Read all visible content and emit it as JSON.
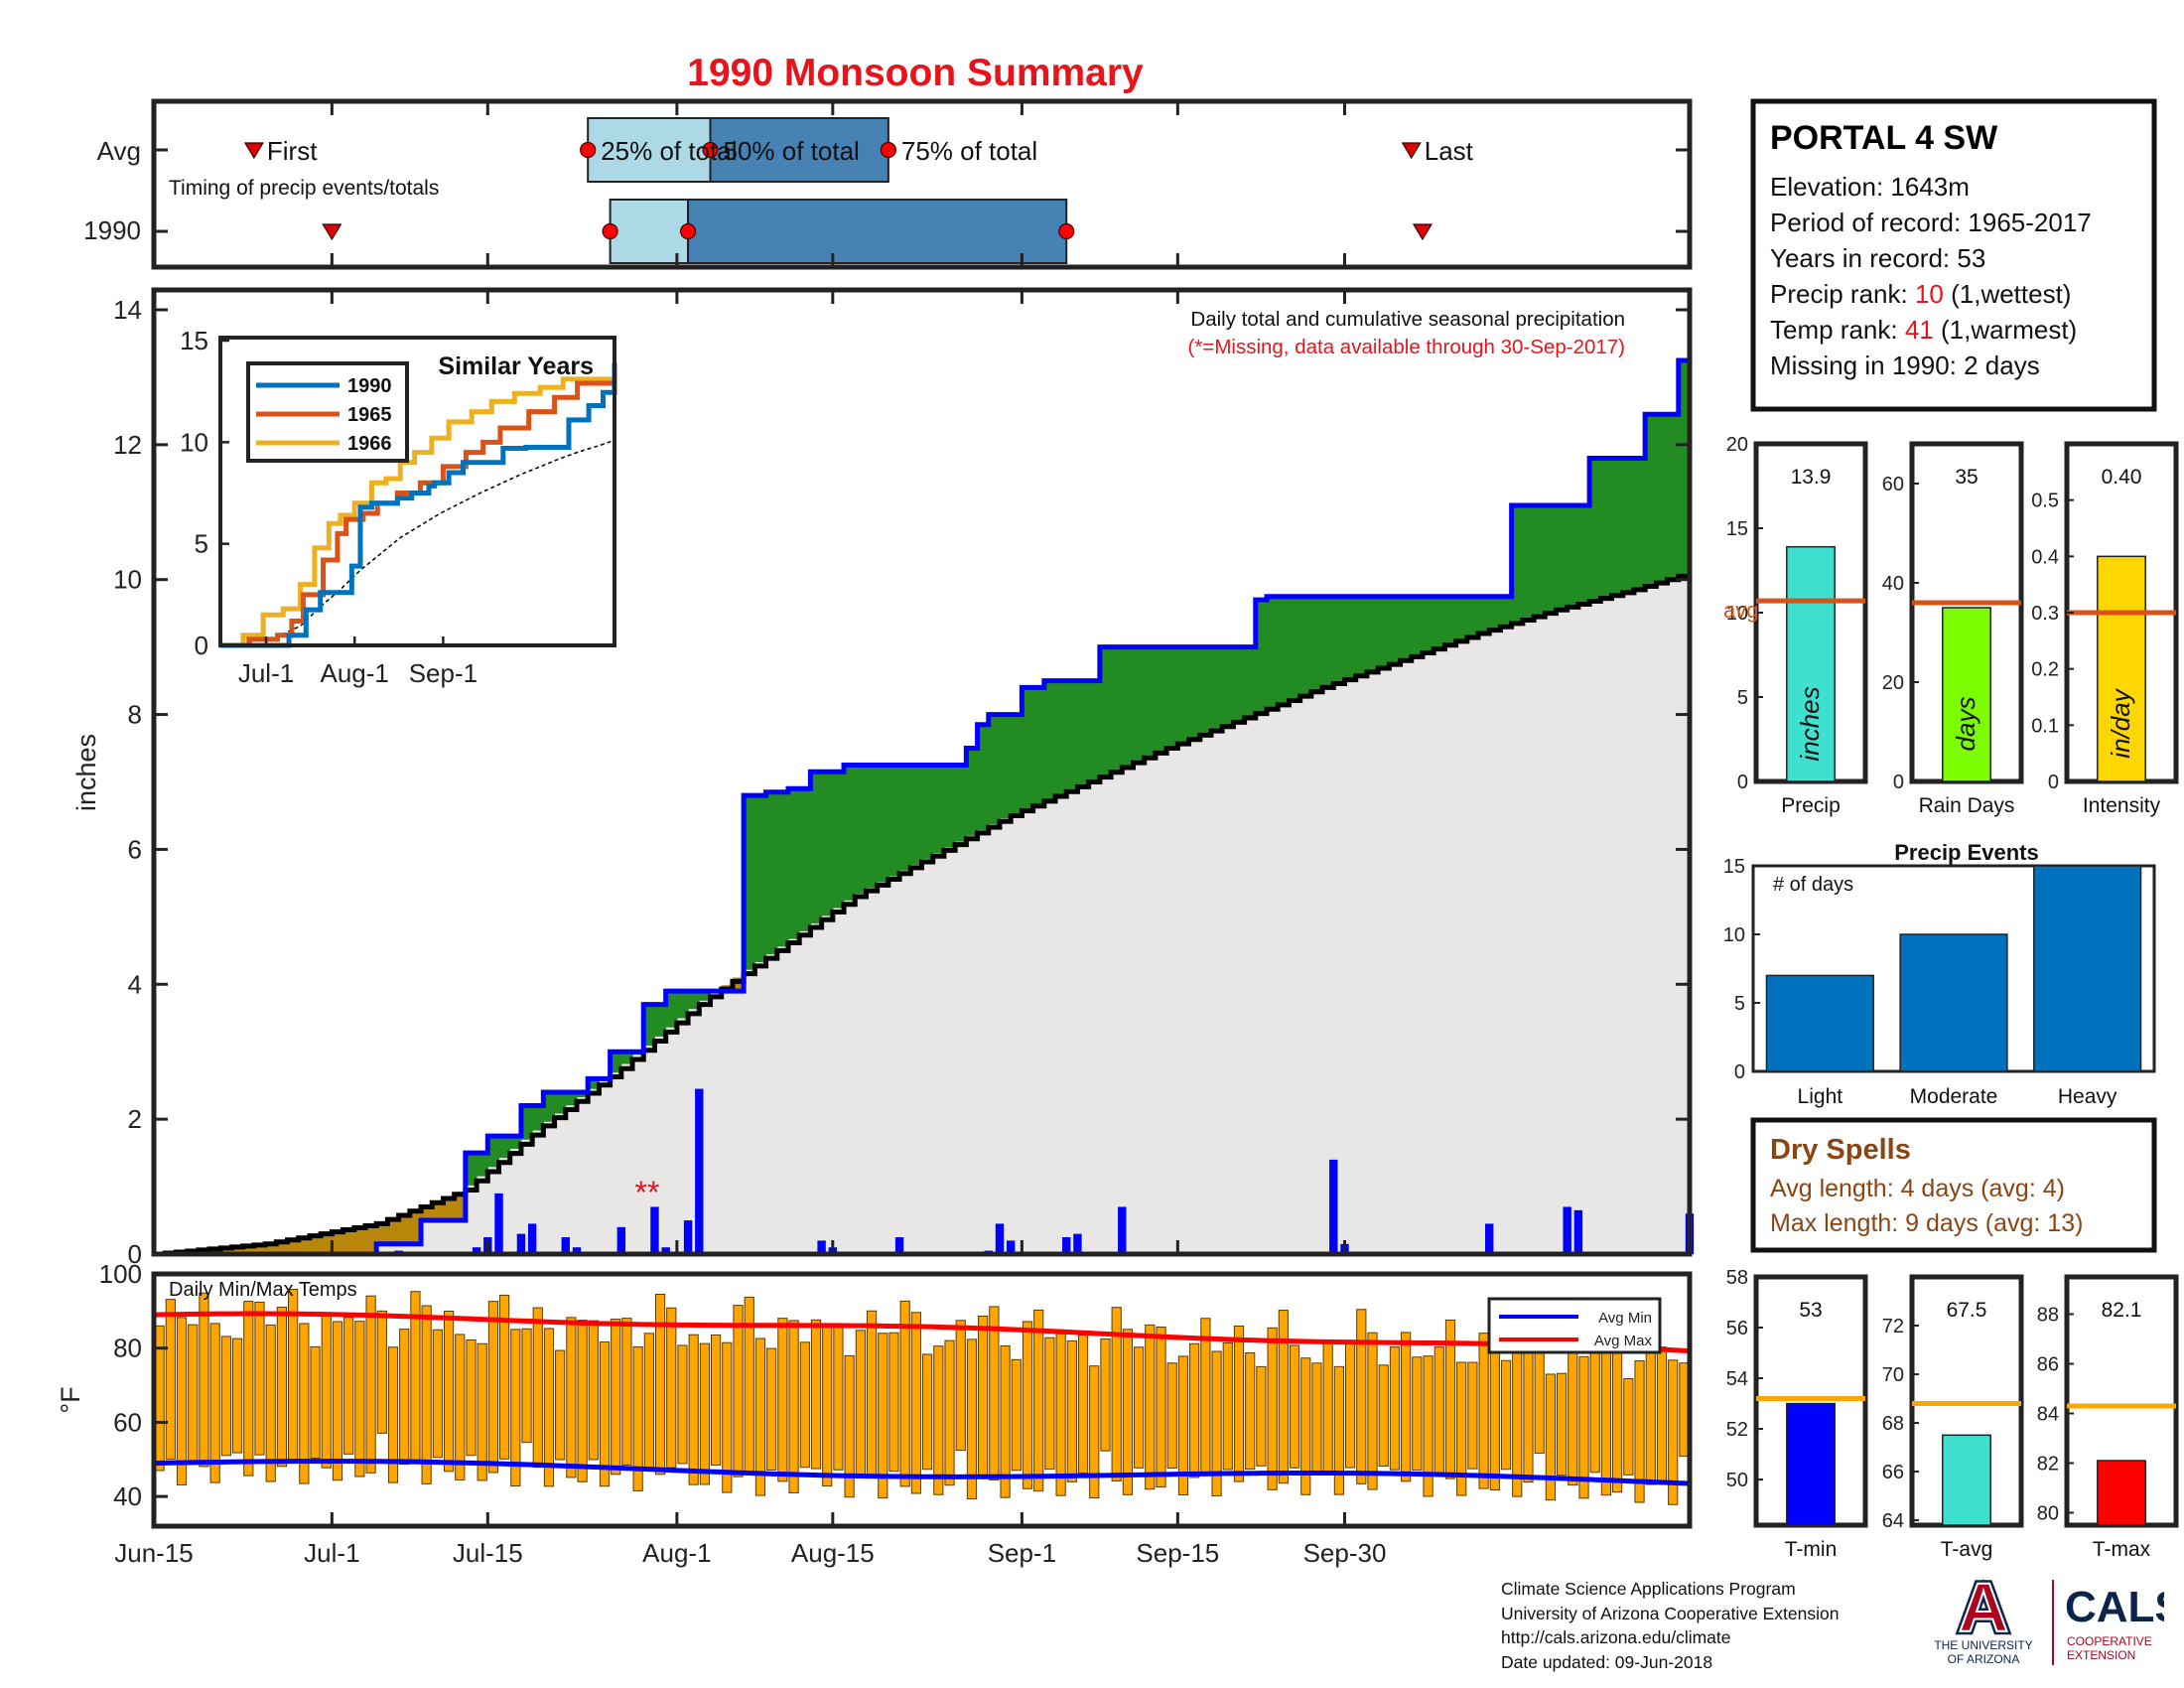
{
  "title": "1990 Monsoon Summary",
  "timing": {
    "row_avg_label": "Avg",
    "row_year_label": "1990",
    "subtitle": "Timing of precip events/totals",
    "first_label": "First",
    "last_label": "Last",
    "p25_label": "25% of total",
    "p50_label": "50% of total",
    "p75_label": "75% of total",
    "avg": {
      "first": 9,
      "p25": 39,
      "p50": 50,
      "p75": 66,
      "last": 113
    },
    "year": {
      "first": 16,
      "p25": 41,
      "p50": 48,
      "p75": 82,
      "last": 114
    }
  },
  "main": {
    "note": "Daily total and cumulative seasonal precipitation",
    "missing_note": "(*=Missing, data available through 30-Sep-2017)",
    "ylabel": "inches",
    "missing_marks": "**",
    "date_ticks": [
      "Jun-15",
      "Jul-1",
      "Jul-15",
      "Aug-1",
      "Aug-15",
      "Sep-1",
      "Sep-15",
      "Sep-30"
    ]
  },
  "chart_data": [
    {
      "type": "area",
      "name": "Cumulative seasonal precipitation",
      "x_day_of_season": [
        0,
        20,
        22,
        24,
        28,
        30,
        33,
        35,
        39,
        41,
        42,
        44,
        46,
        53,
        55,
        57,
        59,
        62,
        73,
        74,
        75,
        78,
        80,
        85,
        99,
        100,
        103,
        107,
        122,
        129,
        131,
        134,
        137,
        138
      ],
      "y_cumulative_1990_in": [
        0,
        0.15,
        0.15,
        0.5,
        1.5,
        1.75,
        2.2,
        2.4,
        2.6,
        3.0,
        3.0,
        3.7,
        3.9,
        6.8,
        6.85,
        6.9,
        7.15,
        7.25,
        7.5,
        7.85,
        8.0,
        8.4,
        8.5,
        9.0,
        9.7,
        9.75,
        9.75,
        9.75,
        11.1,
        11.8,
        11.8,
        12.45,
        13.25,
        13.9
      ],
      "avg_cumulative_x_day": [
        0,
        10,
        20,
        28,
        35,
        42,
        49,
        56,
        63,
        70,
        77,
        84,
        91,
        98,
        105,
        112,
        119,
        126,
        133,
        138
      ],
      "avg_cumulative_in": [
        0,
        0.15,
        0.45,
        0.95,
        1.9,
        2.75,
        3.7,
        4.5,
        5.3,
        5.9,
        6.5,
        7.0,
        7.5,
        7.95,
        8.4,
        8.8,
        9.2,
        9.55,
        9.85,
        10.1
      ],
      "ylim": [
        0,
        14
      ]
    },
    {
      "type": "bar",
      "name": "Daily precipitation 1990",
      "x_day_of_season": [
        22,
        29,
        30,
        31,
        33,
        34,
        37,
        38,
        42,
        45,
        46,
        48,
        49,
        60,
        61,
        67,
        75,
        76,
        77,
        82,
        83,
        87,
        106,
        107,
        120,
        127,
        128,
        138
      ],
      "y_in": [
        0.05,
        0.1,
        0.25,
        0.9,
        0.3,
        0.45,
        0.25,
        0.1,
        0.4,
        0.7,
        0.1,
        0.5,
        2.45,
        0.2,
        0.1,
        0.25,
        0.05,
        0.45,
        0.2,
        0.25,
        0.3,
        0.7,
        1.4,
        0.15,
        0.45,
        0.7,
        0.65,
        0.6
      ]
    },
    {
      "type": "line",
      "name": "Similar Years",
      "title": "Similar Years",
      "xticks": [
        "Jul-1",
        "Aug-1",
        "Sep-1"
      ],
      "ylim": [
        0,
        15
      ],
      "colors": [
        "#0072BD",
        "#D95319",
        "#EDB120"
      ],
      "series": [
        {
          "name": "1990",
          "x": [
            0,
            16,
            24,
            30,
            35,
            46,
            49,
            53,
            62,
            67,
            73,
            75,
            80,
            85,
            99,
            107,
            122,
            129,
            134,
            138
          ],
          "y": [
            0,
            0,
            0.5,
            1.75,
            2.6,
            3.9,
            6.8,
            7.0,
            7.25,
            7.5,
            7.85,
            8.0,
            8.5,
            9.0,
            9.7,
            9.75,
            11.1,
            11.8,
            12.45,
            13.9
          ]
        },
        {
          "name": "1965",
          "x": [
            0,
            10,
            20,
            25,
            29,
            36,
            41,
            44,
            50,
            55,
            62,
            70,
            78,
            86,
            92,
            98,
            108,
            117,
            125,
            138
          ],
          "y": [
            0,
            0.3,
            0.5,
            1.2,
            2.5,
            4.2,
            5.5,
            6.2,
            6.5,
            7.0,
            7.5,
            8.0,
            8.8,
            9.5,
            10.0,
            10.7,
            11.5,
            12.2,
            12.9,
            13.2
          ]
        },
        {
          "name": "1966",
          "x": [
            0,
            8,
            15,
            22,
            28,
            33,
            38,
            42,
            47,
            53,
            58,
            63,
            68,
            74,
            80,
            88,
            95,
            103,
            112,
            120,
            138
          ],
          "y": [
            0,
            0.5,
            1.5,
            1.8,
            3.0,
            4.8,
            6.0,
            6.4,
            7.0,
            8.0,
            8.2,
            9.0,
            9.5,
            10.2,
            11.0,
            11.5,
            12.0,
            12.4,
            12.7,
            13.1,
            13.3
          ]
        }
      ]
    },
    {
      "type": "bar",
      "name": "Seasonal totals",
      "panels": [
        {
          "label": "Precip",
          "unit": "inches",
          "value": 13.9,
          "value_label": "13.9",
          "avg": 10.7,
          "avg_label": "avg",
          "ylim": [
            0,
            20
          ],
          "ticks": [
            0,
            5,
            10,
            15,
            20
          ],
          "color": "#40E0D0"
        },
        {
          "label": "Rain Days",
          "unit": "days",
          "value": 35,
          "value_label": "35",
          "avg": 36,
          "ylim": [
            0,
            68
          ],
          "ticks": [
            0,
            20,
            40,
            60
          ],
          "color": "#7CFC00"
        },
        {
          "label": "Intensity",
          "unit": "in/day",
          "value": 0.4,
          "value_label": "0.40",
          "avg": 0.3,
          "ylim": [
            0,
            0.6
          ],
          "ticks": [
            0,
            0.1,
            0.2,
            0.3,
            0.4,
            0.5
          ],
          "color": "#FFD700"
        }
      ]
    },
    {
      "type": "bar",
      "name": "Precip Events",
      "title": "Precip Events",
      "ylabel": "# of days",
      "categories": [
        "Light",
        "Moderate",
        "Heavy"
      ],
      "values": [
        7,
        10,
        15
      ],
      "ylim": [
        0,
        15
      ]
    },
    {
      "type": "bar",
      "name": "Daily Min/Max Temps",
      "title": "Daily Min/Max Temps",
      "ylabel": "°F",
      "ylim": [
        32,
        100
      ],
      "legend": [
        "Avg Min",
        "Avg Max"
      ],
      "legend_position": "top-right",
      "avg_min_start": 49,
      "avg_min_end": 44,
      "avg_max_start": 89,
      "avg_max_end": 79
    },
    {
      "type": "bar",
      "name": "Seasonal temperature",
      "panels": [
        {
          "label": "T-min",
          "value": 53,
          "value_label": "53",
          "avg": 53.2,
          "ylim": [
            48.2,
            58
          ],
          "ticks": [
            50,
            52,
            54,
            56,
            58
          ],
          "color": "#0000FF"
        },
        {
          "label": "T-avg",
          "value": 67.5,
          "value_label": "67.5",
          "avg": 68.8,
          "ylim": [
            63.8,
            74
          ],
          "ticks": [
            64,
            66,
            68,
            70,
            72
          ],
          "color": "#40E0D0"
        },
        {
          "label": "T-max",
          "value": 82.1,
          "value_label": "82.1",
          "avg": 84.3,
          "ylim": [
            79.5,
            89.5
          ],
          "ticks": [
            80,
            82,
            84,
            86,
            88
          ],
          "color": "#FF0000"
        }
      ]
    }
  ],
  "station": {
    "name": "PORTAL 4 SW",
    "elevation": "Elevation: 1643m",
    "period": "Period of record: 1965-2017",
    "years": "Years in record: 53",
    "precip_rank_pre": "Precip rank: ",
    "precip_rank_val": "10",
    "precip_rank_post": " (1,wettest)",
    "temp_rank_pre": "Temp rank: ",
    "temp_rank_val": "41",
    "temp_rank_post": " (1,warmest)",
    "missing": "Missing in 1990: 2 days"
  },
  "dry_spells": {
    "title": "Dry Spells",
    "avg": "Avg length: 4 days (avg: 4)",
    "max": "Max length: 9 days (avg: 13)"
  },
  "credits": {
    "line1": "Climate Science Applications Program",
    "line2": "University of Arizona Cooperative Extension",
    "line3": "http://cals.arizona.edu/climate",
    "line4": " Date updated: 09-Jun-2018"
  },
  "logo": {
    "letter": "A",
    "univ_line1": "THE UNIVERSITY",
    "univ_line2": "OF ARIZONA",
    "cals": "CALS",
    "coop_line1": "COOPERATIVE",
    "coop_line2": "EXTENSION"
  },
  "colors": {
    "title": "#E8141C",
    "precip_1990": "#0000FF",
    "above_avg": "#228B22",
    "below_avg": "#B8860B",
    "normal_fill": "#E8E7E6",
    "temp_bar": "#FFA500",
    "avg_line": "#D95319",
    "rank_red": "#E8141C",
    "dry_spell": "#8B4513",
    "logo_navy": "#0C234B",
    "logo_red": "#AB0520"
  }
}
